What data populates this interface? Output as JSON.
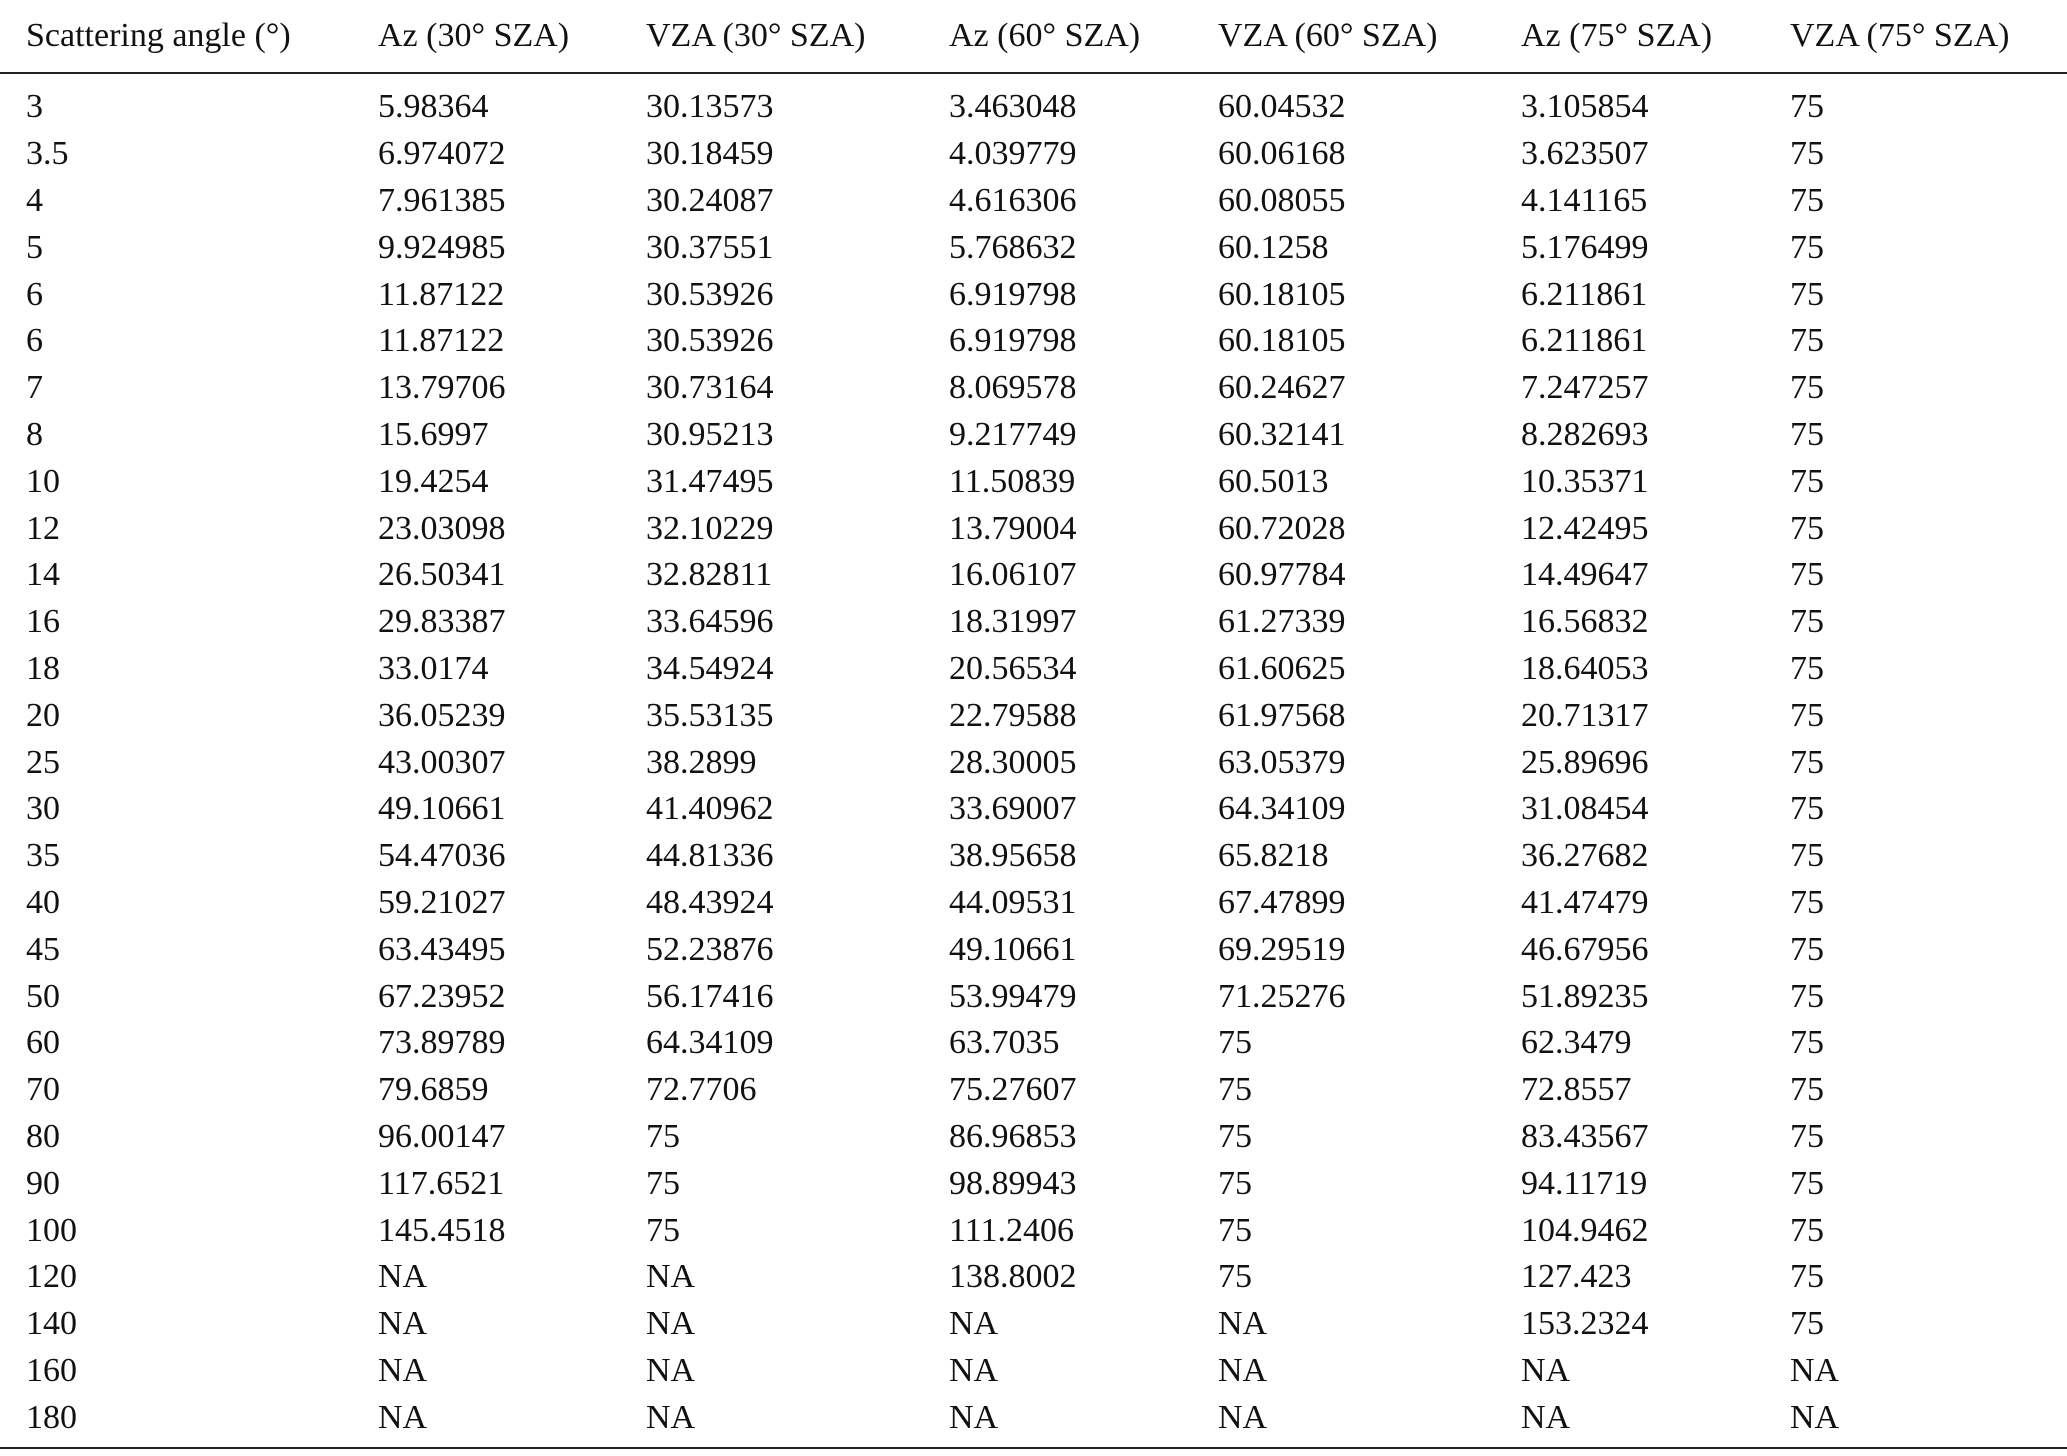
{
  "table": {
    "header": [
      "Scattering angle (°)",
      "Az (30° SZA)",
      "VZA (30° SZA)",
      "Az (60° SZA)",
      "VZA (60° SZA)",
      "Az (75° SZA)",
      "VZA (75° SZA)"
    ],
    "rows": [
      [
        "3",
        "5.98364",
        "30.13573",
        "3.463048",
        "60.04532",
        "3.105854",
        "75"
      ],
      [
        "3.5",
        "6.974072",
        "30.18459",
        "4.039779",
        "60.06168",
        "3.623507",
        "75"
      ],
      [
        "4",
        "7.961385",
        "30.24087",
        "4.616306",
        "60.08055",
        "4.141165",
        "75"
      ],
      [
        "5",
        "9.924985",
        "30.37551",
        "5.768632",
        "60.1258",
        "5.176499",
        "75"
      ],
      [
        "6",
        "11.87122",
        "30.53926",
        "6.919798",
        "60.18105",
        "6.211861",
        "75"
      ],
      [
        "6",
        "11.87122",
        "30.53926",
        "6.919798",
        "60.18105",
        "6.211861",
        "75"
      ],
      [
        "7",
        "13.79706",
        "30.73164",
        "8.069578",
        "60.24627",
        "7.247257",
        "75"
      ],
      [
        "8",
        "15.6997",
        "30.95213",
        "9.217749",
        "60.32141",
        "8.282693",
        "75"
      ],
      [
        "10",
        "19.4254",
        "31.47495",
        "11.50839",
        "60.5013",
        "10.35371",
        "75"
      ],
      [
        "12",
        "23.03098",
        "32.10229",
        "13.79004",
        "60.72028",
        "12.42495",
        "75"
      ],
      [
        "14",
        "26.50341",
        "32.82811",
        "16.06107",
        "60.97784",
        "14.49647",
        "75"
      ],
      [
        "16",
        "29.83387",
        "33.64596",
        "18.31997",
        "61.27339",
        "16.56832",
        "75"
      ],
      [
        "18",
        "33.0174",
        "34.54924",
        "20.56534",
        "61.60625",
        "18.64053",
        "75"
      ],
      [
        "20",
        "36.05239",
        "35.53135",
        "22.79588",
        "61.97568",
        "20.71317",
        "75"
      ],
      [
        "25",
        "43.00307",
        "38.2899",
        "28.30005",
        "63.05379",
        "25.89696",
        "75"
      ],
      [
        "30",
        "49.10661",
        "41.40962",
        "33.69007",
        "64.34109",
        "31.08454",
        "75"
      ],
      [
        "35",
        "54.47036",
        "44.81336",
        "38.95658",
        "65.8218",
        "36.27682",
        "75"
      ],
      [
        "40",
        "59.21027",
        "48.43924",
        "44.09531",
        "67.47899",
        "41.47479",
        "75"
      ],
      [
        "45",
        "63.43495",
        "52.23876",
        "49.10661",
        "69.29519",
        "46.67956",
        "75"
      ],
      [
        "50",
        "67.23952",
        "56.17416",
        "53.99479",
        "71.25276",
        "51.89235",
        "75"
      ],
      [
        "60",
        "73.89789",
        "64.34109",
        "63.7035",
        "75",
        "62.3479",
        "75"
      ],
      [
        "70",
        "79.6859",
        "72.7706",
        "75.27607",
        "75",
        "72.8557",
        "75"
      ],
      [
        "80",
        "96.00147",
        "75",
        "86.96853",
        "75",
        "83.43567",
        "75"
      ],
      [
        "90",
        "117.6521",
        "75",
        "98.89943",
        "75",
        "94.11719",
        "75"
      ],
      [
        "100",
        "145.4518",
        "75",
        "111.2406",
        "75",
        "104.9462",
        "75"
      ],
      [
        "120",
        "NA",
        "NA",
        "138.8002",
        "75",
        "127.423",
        "75"
      ],
      [
        "140",
        "NA",
        "NA",
        "NA",
        "NA",
        "153.2324",
        "75"
      ],
      [
        "160",
        "NA",
        "NA",
        "NA",
        "NA",
        "NA",
        "NA"
      ],
      [
        "180",
        "NA",
        "NA",
        "NA",
        "NA",
        "NA",
        "NA"
      ]
    ]
  }
}
